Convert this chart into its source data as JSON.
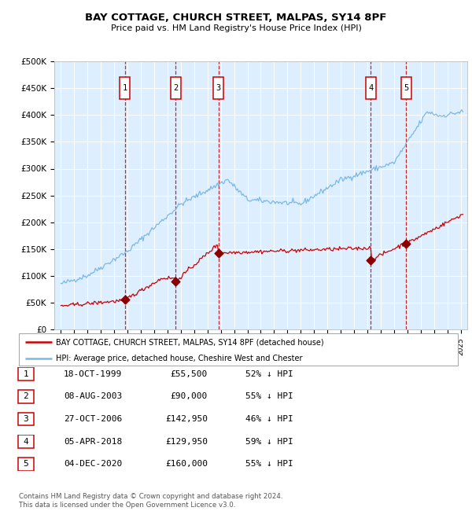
{
  "title": "BAY COTTAGE, CHURCH STREET, MALPAS, SY14 8PF",
  "subtitle": "Price paid vs. HM Land Registry's House Price Index (HPI)",
  "ylim": [
    0,
    500000
  ],
  "yticks": [
    0,
    50000,
    100000,
    150000,
    200000,
    250000,
    300000,
    350000,
    400000,
    450000,
    500000
  ],
  "ytick_labels": [
    "£0",
    "£50K",
    "£100K",
    "£150K",
    "£200K",
    "£250K",
    "£300K",
    "£350K",
    "£400K",
    "£450K",
    "£500K"
  ],
  "hpi_color": "#7ab8e8",
  "price_color": "#cc0000",
  "marker_color": "#880000",
  "plot_bg": "#ddeeff",
  "grid_color": "#ffffff",
  "vline_color": "#cc0000",
  "sale_dates_x": [
    1999.79,
    2003.6,
    2006.82,
    2018.26,
    2020.92
  ],
  "sale_prices": [
    55500,
    90000,
    142950,
    129950,
    160000
  ],
  "sale_labels": [
    "1",
    "2",
    "3",
    "4",
    "5"
  ],
  "legend_line1": "BAY COTTAGE, CHURCH STREET, MALPAS, SY14 8PF (detached house)",
  "legend_line2": "HPI: Average price, detached house, Cheshire West and Chester",
  "table_data": [
    [
      "1",
      "18-OCT-1999",
      "£55,500",
      "52% ↓ HPI"
    ],
    [
      "2",
      "08-AUG-2003",
      "£90,000",
      "55% ↓ HPI"
    ],
    [
      "3",
      "27-OCT-2006",
      "£142,950",
      "46% ↓ HPI"
    ],
    [
      "4",
      "05-APR-2018",
      "£129,950",
      "59% ↓ HPI"
    ],
    [
      "5",
      "04-DEC-2020",
      "£160,000",
      "55% ↓ HPI"
    ]
  ],
  "footer": "Contains HM Land Registry data © Crown copyright and database right 2024.\nThis data is licensed under the Open Government Licence v3.0.",
  "xlim_start": 1994.5,
  "xlim_end": 2025.5
}
